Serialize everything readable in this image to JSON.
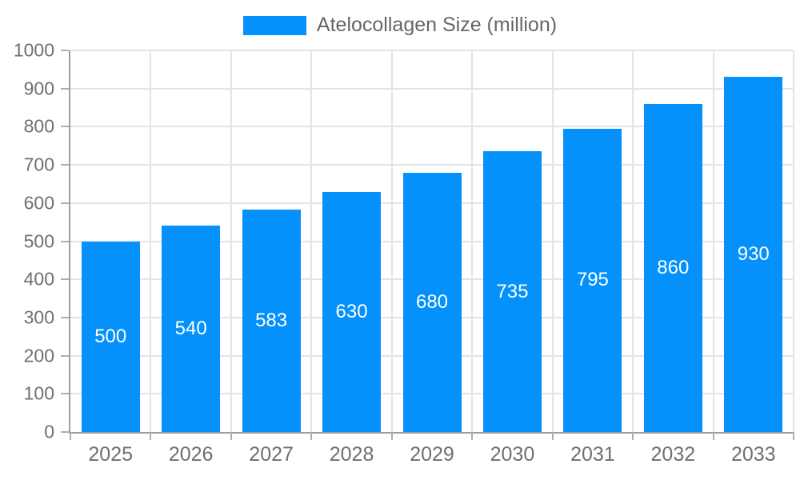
{
  "chart_data": {
    "type": "bar",
    "title": "Atelocollagen Size (million)",
    "series_name": "Atelocollagen Size (million)",
    "categories": [
      "2025",
      "2026",
      "2027",
      "2028",
      "2029",
      "2030",
      "2031",
      "2032",
      "2033"
    ],
    "values": [
      500,
      540,
      583,
      630,
      680,
      735,
      795,
      860,
      930
    ],
    "bar_labels": [
      500,
      540,
      583,
      630,
      680,
      735,
      795,
      860,
      930
    ],
    "xlabel": "",
    "ylabel": "",
    "ylim": [
      0,
      1000
    ],
    "y_ticks": [
      0,
      100,
      200,
      300,
      400,
      500,
      600,
      700,
      800,
      900,
      1000
    ],
    "grid": true,
    "legend_position": "top"
  },
  "colors": {
    "bar": "#0591fb",
    "grid": "#e4e4e4",
    "axis": "#9e9e9e",
    "tick": "#aeaeae",
    "tick_label": "#6f6f6f",
    "legend_text": "#666666",
    "bar_label": "#ffffff",
    "background": "#ffffff"
  }
}
